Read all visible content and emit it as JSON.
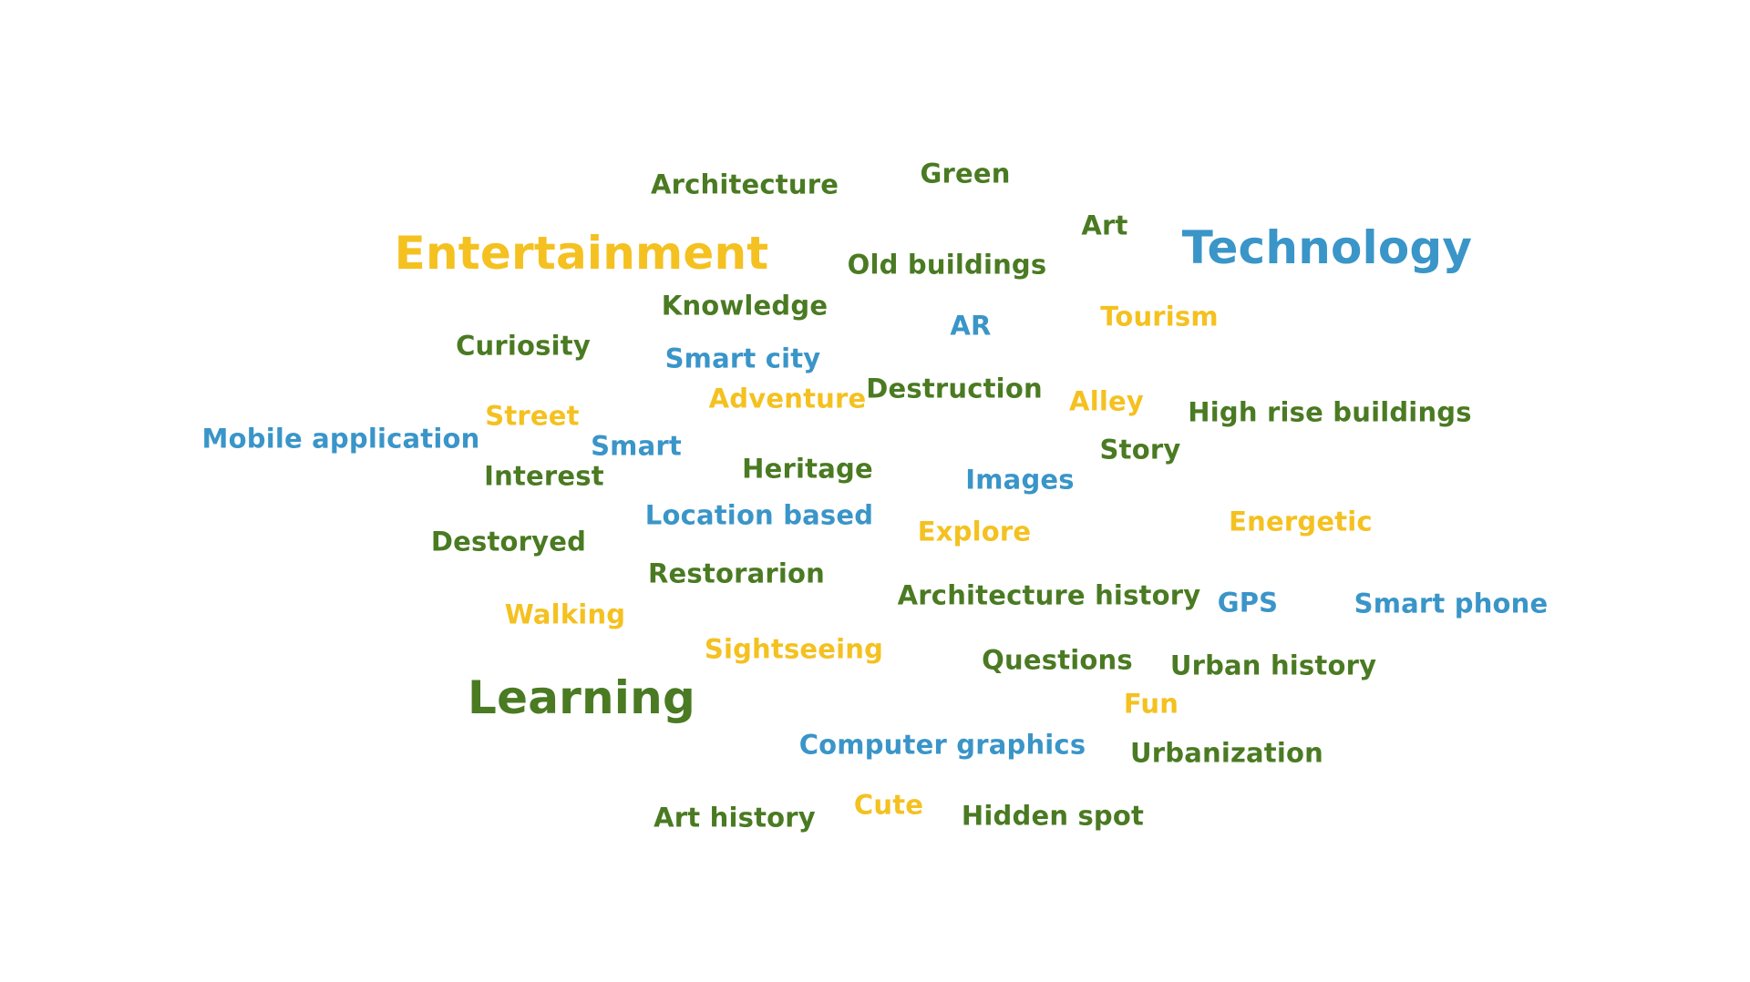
{
  "colors": {
    "green": "#4a7a22",
    "yellow": "#f4c120",
    "blue": "#3a95c8"
  },
  "words": [
    {
      "text": "Architecture",
      "color": "green",
      "weight": 1
    },
    {
      "text": "Green",
      "color": "green",
      "weight": 1
    },
    {
      "text": "Art",
      "color": "green",
      "weight": 1
    },
    {
      "text": "Entertainment",
      "color": "yellow",
      "weight": 3
    },
    {
      "text": "Technology",
      "color": "blue",
      "weight": 3
    },
    {
      "text": "Old buildings",
      "color": "green",
      "weight": 1
    },
    {
      "text": "Knowledge",
      "color": "green",
      "weight": 1
    },
    {
      "text": "Tourism",
      "color": "yellow",
      "weight": 1
    },
    {
      "text": "AR",
      "color": "blue",
      "weight": 1
    },
    {
      "text": "Curiosity",
      "color": "green",
      "weight": 1
    },
    {
      "text": "Smart city",
      "color": "blue",
      "weight": 1
    },
    {
      "text": "Adventure",
      "color": "yellow",
      "weight": 1
    },
    {
      "text": "Destruction",
      "color": "green",
      "weight": 1
    },
    {
      "text": "Alley",
      "color": "yellow",
      "weight": 1
    },
    {
      "text": "High rise buildings",
      "color": "green",
      "weight": 1
    },
    {
      "text": "Street",
      "color": "yellow",
      "weight": 1
    },
    {
      "text": "Mobile application",
      "color": "blue",
      "weight": 1
    },
    {
      "text": "Smart",
      "color": "blue",
      "weight": 1
    },
    {
      "text": "Story",
      "color": "green",
      "weight": 1
    },
    {
      "text": "Interest",
      "color": "green",
      "weight": 1
    },
    {
      "text": "Heritage",
      "color": "green",
      "weight": 1
    },
    {
      "text": "Images",
      "color": "blue",
      "weight": 1
    },
    {
      "text": "Location based",
      "color": "blue",
      "weight": 1
    },
    {
      "text": "Energetic",
      "color": "yellow",
      "weight": 1
    },
    {
      "text": "Destoryed",
      "color": "green",
      "weight": 1
    },
    {
      "text": "Explore",
      "color": "yellow",
      "weight": 1
    },
    {
      "text": "Restorarion",
      "color": "green",
      "weight": 1
    },
    {
      "text": "Architecture history",
      "color": "green",
      "weight": 1
    },
    {
      "text": "GPS",
      "color": "blue",
      "weight": 1
    },
    {
      "text": "Smart phone",
      "color": "blue",
      "weight": 1
    },
    {
      "text": "Walking",
      "color": "yellow",
      "weight": 1
    },
    {
      "text": "Sightseeing",
      "color": "yellow",
      "weight": 1
    },
    {
      "text": "Questions",
      "color": "green",
      "weight": 1
    },
    {
      "text": "Urban history",
      "color": "green",
      "weight": 1
    },
    {
      "text": "Learning",
      "color": "green",
      "weight": 3
    },
    {
      "text": "Fun",
      "color": "yellow",
      "weight": 1
    },
    {
      "text": "Computer graphics",
      "color": "blue",
      "weight": 1
    },
    {
      "text": "Urbanization",
      "color": "green",
      "weight": 1
    },
    {
      "text": "Art history",
      "color": "green",
      "weight": 1
    },
    {
      "text": "Cute",
      "color": "yellow",
      "weight": 1
    },
    {
      "text": "Hidden spot",
      "color": "green",
      "weight": 1
    }
  ]
}
